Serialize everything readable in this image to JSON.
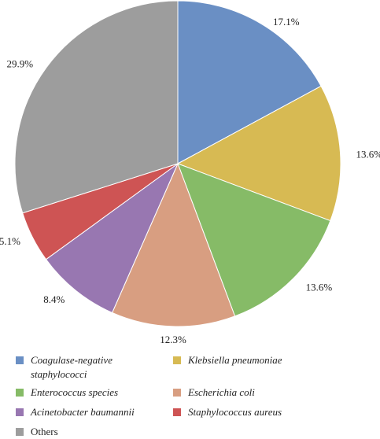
{
  "chart_data": {
    "type": "pie",
    "title": "",
    "start_angle_deg": 0,
    "direction": "clockwise",
    "legend_position": "bottom",
    "slices": [
      {
        "name": "Coagulase-negative staphylococci",
        "value": 17.1,
        "label": "17.1%",
        "color": "#6a8fc4",
        "italic": true
      },
      {
        "name": "Klebsiella pneumoniae",
        "value": 13.6,
        "label": "13.6%",
        "color": "#d7ba53",
        "italic": true
      },
      {
        "name": "Enterococcus species",
        "value": 13.6,
        "label": "13.6%",
        "color": "#86bb67",
        "italic": true
      },
      {
        "name": "Escherichia coli",
        "value": 12.3,
        "label": "12.3%",
        "color": "#d89e81",
        "italic": true
      },
      {
        "name": "Acinetobacter baumannii",
        "value": 8.4,
        "label": "8.4%",
        "color": "#9877b1",
        "italic": true
      },
      {
        "name": "Staphylococcus aureus",
        "value": 5.1,
        "label": "5.1%",
        "color": "#ce5454",
        "italic": true
      },
      {
        "name": "Others",
        "value": 29.9,
        "label": "29.9%",
        "color": "#9d9d9d",
        "italic": false
      }
    ]
  }
}
